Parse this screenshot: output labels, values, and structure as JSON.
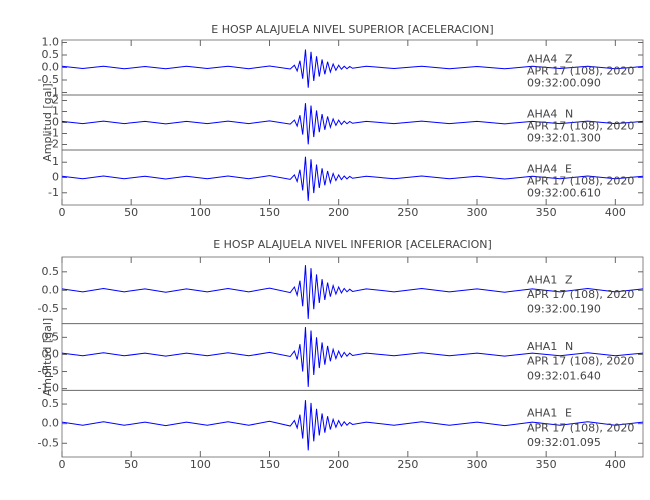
{
  "chart_data": [
    {
      "type": "line",
      "title": "E HOSP ALAJUELA NIVEL SUPERIOR [ACELERACION]",
      "ylabel": "Amplitud [gal]",
      "color": "#0000ff",
      "xlim": [
        0,
        420
      ],
      "xticks": [
        0,
        50,
        100,
        150,
        200,
        250,
        300,
        350,
        400
      ],
      "x": [
        0,
        15,
        30,
        45,
        60,
        75,
        90,
        105,
        120,
        135,
        150,
        165,
        168,
        170,
        172,
        174,
        176,
        178,
        180,
        182,
        184,
        186,
        188,
        190,
        192,
        194,
        196,
        198,
        200,
        202,
        204,
        206,
        208,
        210,
        220,
        240,
        260,
        280,
        300,
        320,
        340,
        360,
        380,
        400,
        420
      ],
      "panels": [
        {
          "station": "AHA4",
          "component": "Z",
          "date": "APR 17 (108), 2020",
          "time": "09:32:00.090",
          "ylim": [
            -1.1,
            1.1
          ],
          "yticks": [
            -1,
            -0.5,
            {
              "value": 0,
              "label": "0.0"
            },
            0.5,
            {
              "value": 1,
              "label": "1.0"
            }
          ],
          "values": [
            0.05,
            -0.04,
            0.05,
            -0.05,
            0.04,
            -0.05,
            0.05,
            -0.04,
            0.05,
            -0.05,
            0.06,
            -0.06,
            0.09,
            -0.14,
            0.27,
            -0.45,
            0.72,
            -0.81,
            0.63,
            -0.54,
            0.45,
            -0.36,
            0.32,
            -0.27,
            0.23,
            -0.18,
            0.14,
            -0.11,
            0.09,
            -0.07,
            0.05,
            -0.05,
            0.04,
            -0.03,
            0.05,
            -0.04,
            0.05,
            -0.05,
            0.04,
            -0.05,
            0.05,
            -0.04,
            0.05,
            -0.05,
            0.04
          ]
        },
        {
          "station": "AHA4",
          "component": "N",
          "date": "APR 17 (108), 2020",
          "time": "09:32:01.300",
          "ylim": [
            -2.5,
            2.5
          ],
          "yticks": [
            -2,
            -1,
            0,
            1,
            2
          ],
          "values": [
            0.1,
            -0.1,
            0.12,
            -0.1,
            0.1,
            -0.12,
            0.1,
            -0.1,
            0.12,
            -0.1,
            0.15,
            -0.15,
            0.22,
            -0.33,
            0.66,
            -1.1,
            1.76,
            -1.98,
            1.54,
            -1.32,
            1.1,
            -0.88,
            0.77,
            -0.66,
            0.55,
            -0.44,
            0.33,
            -0.26,
            0.22,
            -0.18,
            0.13,
            -0.11,
            0.09,
            -0.07,
            0.1,
            -0.1,
            0.12,
            -0.1,
            0.1,
            -0.12,
            0.1,
            -0.1,
            0.12,
            -0.1,
            0.1
          ]
        },
        {
          "station": "AHA4",
          "component": "E",
          "date": "APR 17 (108), 2020",
          "time": "09:32:00.610",
          "ylim": [
            -1.8,
            1.8
          ],
          "yticks": [
            -1,
            0,
            1
          ],
          "values": [
            0.08,
            -0.08,
            0.1,
            -0.08,
            0.08,
            -0.1,
            0.08,
            -0.08,
            0.1,
            -0.08,
            0.12,
            -0.12,
            0.17,
            -0.26,
            0.51,
            -0.85,
            1.36,
            -1.53,
            1.19,
            -1.02,
            0.85,
            -0.68,
            0.6,
            -0.51,
            0.43,
            -0.34,
            0.26,
            -0.2,
            0.17,
            -0.14,
            0.1,
            -0.09,
            0.07,
            -0.05,
            0.08,
            -0.08,
            0.1,
            -0.08,
            0.08,
            -0.1,
            0.08,
            -0.08,
            0.1,
            -0.08,
            0.08
          ]
        }
      ]
    },
    {
      "type": "line",
      "title": "E HOSP ALAJUELA NIVEL INFERIOR [ACELERACION]",
      "ylabel": "Amplitud [gal]",
      "color": "#0000ff",
      "xlim": [
        0,
        420
      ],
      "xticks": [
        0,
        50,
        100,
        150,
        200,
        250,
        300,
        350,
        400
      ],
      "x": [
        0,
        15,
        30,
        45,
        60,
        75,
        90,
        105,
        120,
        135,
        150,
        165,
        168,
        170,
        172,
        174,
        176,
        178,
        180,
        182,
        184,
        186,
        188,
        190,
        192,
        194,
        196,
        198,
        200,
        202,
        204,
        206,
        208,
        210,
        220,
        240,
        260,
        280,
        300,
        320,
        340,
        360,
        380,
        400,
        420
      ],
      "panels": [
        {
          "station": "AHA1",
          "component": "Z",
          "date": "APR 17 (108), 2020",
          "time": "09:32:00.190",
          "ylim": [
            -0.9,
            0.9
          ],
          "yticks": [
            -0.5,
            {
              "value": 0,
              "label": "0.0"
            },
            0.5
          ],
          "values": [
            0.04,
            -0.04,
            0.05,
            -0.04,
            0.04,
            -0.05,
            0.04,
            -0.04,
            0.05,
            -0.04,
            0.06,
            -0.06,
            0.09,
            -0.13,
            0.26,
            -0.43,
            0.68,
            -0.77,
            0.6,
            -0.51,
            0.43,
            -0.34,
            0.3,
            -0.26,
            0.21,
            -0.17,
            0.13,
            -0.1,
            0.09,
            -0.07,
            0.05,
            -0.04,
            0.03,
            -0.03,
            0.04,
            -0.04,
            0.05,
            -0.04,
            0.04,
            -0.05,
            0.04,
            -0.04,
            0.05,
            -0.04,
            0.04
          ]
        },
        {
          "station": "AHA1",
          "component": "N",
          "date": "APR 17 (108), 2020",
          "time": "09:32:01.640",
          "ylim": [
            -1.05,
            0.9
          ],
          "yticks": [
            {
              "value": -1,
              "label": "-1.0"
            },
            -0.5,
            {
              "value": 0,
              "label": "0.0"
            },
            0.5
          ],
          "values": [
            0.04,
            -0.04,
            0.05,
            -0.04,
            0.04,
            -0.05,
            0.04,
            -0.04,
            0.05,
            -0.04,
            0.06,
            -0.06,
            0.1,
            -0.15,
            0.3,
            -0.5,
            0.8,
            -0.95,
            0.7,
            -0.6,
            0.5,
            -0.4,
            0.35,
            -0.3,
            0.25,
            -0.2,
            0.15,
            -0.12,
            0.1,
            -0.08,
            0.06,
            -0.05,
            0.04,
            -0.03,
            0.04,
            -0.04,
            0.05,
            -0.04,
            0.04,
            -0.05,
            0.04,
            -0.04,
            0.05,
            -0.04,
            0.04
          ]
        },
        {
          "station": "AHA1",
          "component": "E",
          "date": "APR 17 (108), 2020",
          "time": "09:32:01.095",
          "ylim": [
            -0.85,
            0.85
          ],
          "yticks": [
            -0.5,
            {
              "value": 0,
              "label": "0.0"
            },
            0.5
          ],
          "values": [
            0.04,
            -0.04,
            0.05,
            -0.04,
            0.04,
            -0.05,
            0.04,
            -0.04,
            0.05,
            -0.04,
            0.06,
            -0.06,
            0.08,
            -0.11,
            0.23,
            -0.38,
            0.6,
            -0.68,
            0.53,
            -0.45,
            0.38,
            -0.3,
            0.26,
            -0.23,
            0.19,
            -0.15,
            0.11,
            -0.09,
            0.08,
            -0.06,
            0.05,
            -0.04,
            0.03,
            -0.02,
            0.04,
            -0.04,
            0.05,
            -0.04,
            0.04,
            -0.05,
            0.04,
            -0.04,
            0.05,
            -0.04,
            0.04
          ]
        }
      ]
    }
  ]
}
